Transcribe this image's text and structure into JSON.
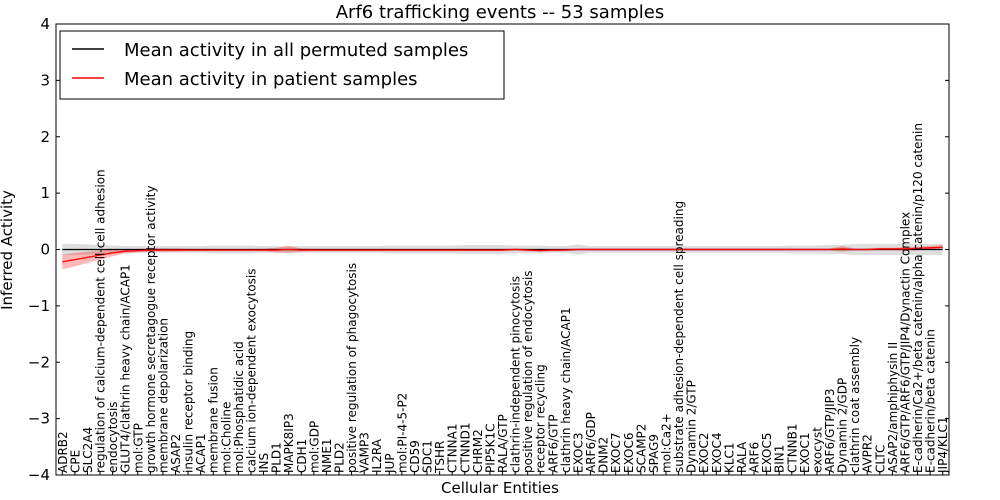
{
  "chart_data": {
    "type": "line",
    "title": "Arf6 trafficking events -- 53 samples",
    "xlabel": "Cellular Entities",
    "ylabel": "Inferred Activity",
    "ylim": [
      -4,
      4
    ],
    "yticks": [
      "4",
      "3",
      "2",
      "1",
      "0",
      "−1",
      "−2",
      "−3",
      "−4"
    ],
    "grid": false,
    "legend_position": "top-left",
    "categories": [
      "ADRB2",
      "CPE",
      "SLC2A4",
      "regulation of calcium-dependent cell-cell adhesion",
      "endocytosis",
      "GLUT4/clathrin heavy chain/ACAP1",
      "mol:GTP",
      "growth hormone secretagogue receptor activity",
      "membrane depolarization",
      "ASAP2",
      "insulin receptor binding",
      "ACAP1",
      "membrane fusion",
      "mol:Choline",
      "mol:Phosphatidic acid",
      "calcium ion-dependent exocytosis",
      "INS",
      "PLD1",
      "MAPK8IP3",
      "CDH1",
      "mol:GDP",
      "NME1",
      "PLD2",
      "positive regulation of phagocytosis",
      "VAMP3",
      "IL2RA",
      "JUP",
      "mol:PI-4-5-P2",
      "CD59",
      "SDC1",
      "TSHR",
      "CTNNA1",
      "CTNND1",
      "CHRM2",
      "PIP5K1C",
      "RALA/GTP",
      "clathrin-independent pinocytosis",
      "positive regulation of endocytosis",
      "receptor recycling",
      "ARF6/GTP",
      "clathrin heavy chain/ACAP1",
      "EXOC3",
      "ARF6/GDP",
      "DNM2",
      "EXOC7",
      "EXOC6",
      "SCAMP2",
      "SPAG9",
      "mol:Ca2+",
      "substrate adhesion-dependent cell spreading",
      "Dynamin 2/GTP",
      "EXOC2",
      "EXOC4",
      "KLC1",
      "RALA",
      "ARF6",
      "EXOC5",
      "BIN1",
      "CTNNB1",
      "EXOC1",
      "exocyst",
      "ARF6/GTP/JIP3",
      "Dynamin 2/GDP",
      "clathrin coat assembly",
      "AVPR2",
      "CLTC",
      "ASAP2/amphiphysin II",
      "ARF6/GTP/ARF6/GTP/JIP4/Dynactin Complex",
      "E-cadherin/Ca2+/beta catenin/alpha catenin/p120 catenin",
      "E-cadherin/beta catenin",
      "JIP4/KLC1"
    ],
    "series": [
      {
        "name": "Mean activity in all permuted samples",
        "color": "#000000",
        "values": [
          0,
          0,
          0,
          0,
          0,
          0,
          0,
          0,
          0,
          0,
          0,
          0,
          0,
          0,
          0,
          0,
          0,
          0,
          0,
          0,
          0,
          0,
          0,
          0,
          0,
          0,
          0,
          0,
          0,
          0,
          0,
          0,
          0,
          0,
          0,
          0,
          0,
          0,
          0,
          0,
          0,
          0,
          0,
          0,
          0,
          0,
          0,
          0,
          0,
          0,
          0,
          0,
          0,
          0,
          0,
          0,
          0,
          0,
          0,
          0,
          0,
          0,
          0,
          0,
          0,
          0,
          0,
          0,
          0,
          0,
          0
        ],
        "band": [
          0.1,
          0.1,
          0.09,
          0.08,
          0.07,
          0.06,
          0.06,
          0.06,
          0.06,
          0.06,
          0.06,
          0.06,
          0.07,
          0.07,
          0.07,
          0.07,
          0.06,
          0.06,
          0.06,
          0.06,
          0.06,
          0.06,
          0.06,
          0.06,
          0.06,
          0.06,
          0.07,
          0.07,
          0.07,
          0.07,
          0.07,
          0.07,
          0.08,
          0.08,
          0.08,
          0.08,
          0.07,
          0.07,
          0.07,
          0.06,
          0.06,
          0.09,
          0.06,
          0.06,
          0.06,
          0.06,
          0.06,
          0.06,
          0.06,
          0.06,
          0.06,
          0.06,
          0.06,
          0.06,
          0.06,
          0.06,
          0.06,
          0.06,
          0.07,
          0.07,
          0.07,
          0.08,
          0.08,
          0.1,
          0.1,
          0.1,
          0.1,
          0.1,
          0.1,
          0.1,
          0.1
        ]
      },
      {
        "name": "Mean activity in patient samples",
        "color": "#ff0000",
        "values": [
          -0.22,
          -0.18,
          -0.14,
          -0.1,
          -0.06,
          -0.03,
          -0.02,
          -0.01,
          -0.01,
          -0.01,
          -0.01,
          -0.01,
          -0.01,
          -0.01,
          -0.01,
          -0.01,
          -0.01,
          -0.01,
          0,
          -0.01,
          -0.01,
          -0.01,
          -0.01,
          -0.01,
          -0.01,
          -0.01,
          -0.01,
          -0.01,
          -0.01,
          -0.01,
          -0.01,
          -0.01,
          -0.01,
          -0.01,
          -0.01,
          -0.01,
          0,
          -0.01,
          -0.02,
          -0.01,
          -0.01,
          0,
          0,
          0,
          0,
          0,
          0,
          0,
          0,
          0,
          0,
          0,
          0,
          0,
          0,
          0,
          0,
          0,
          0,
          0,
          0,
          0,
          0.01,
          0,
          0,
          0.01,
          0.01,
          0.01,
          0.02,
          0.03,
          0.04
        ],
        "band": [
          0.13,
          0.12,
          0.1,
          0.08,
          0.06,
          0.04,
          0.03,
          0.03,
          0.03,
          0.03,
          0.02,
          0.02,
          0.02,
          0.02,
          0.02,
          0.02,
          0.02,
          0.04,
          0.06,
          0.03,
          0.02,
          0.02,
          0.02,
          0.02,
          0.02,
          0.02,
          0.02,
          0.02,
          0.02,
          0.02,
          0.02,
          0.02,
          0.02,
          0.02,
          0.02,
          0.02,
          0.02,
          0.02,
          0.02,
          0.02,
          0.02,
          0.02,
          0.02,
          0.02,
          0.02,
          0.02,
          0.02,
          0.02,
          0.02,
          0.02,
          0.02,
          0.02,
          0.02,
          0.02,
          0.02,
          0.02,
          0.02,
          0.02,
          0.02,
          0.02,
          0.02,
          0.02,
          0.05,
          0.02,
          0.02,
          0.02,
          0.02,
          0.03,
          0.03,
          0.03,
          0.04
        ]
      }
    ]
  }
}
